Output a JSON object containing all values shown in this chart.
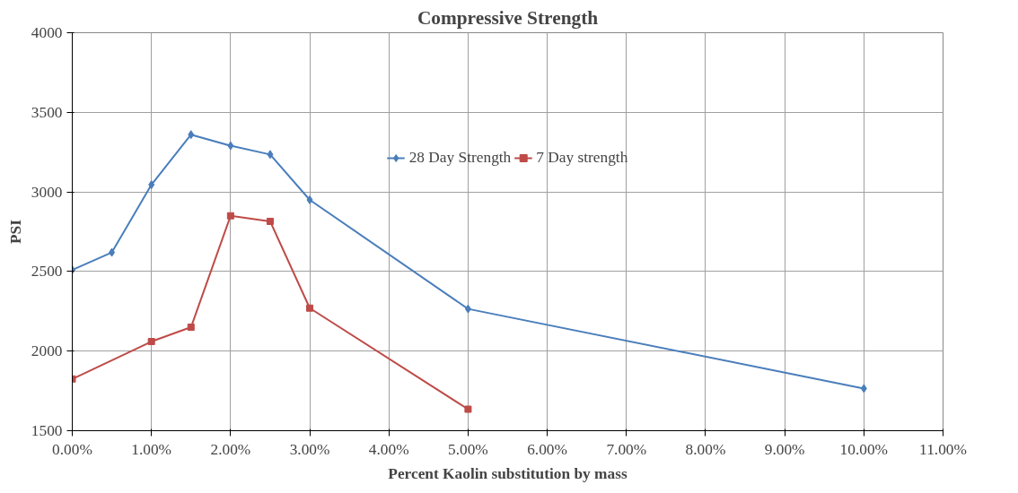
{
  "chart_data": {
    "type": "line",
    "title": "Compressive Strength",
    "xlabel": "Percent Kaolin substitution by mass",
    "ylabel": "PSI",
    "xlim": [
      0,
      11
    ],
    "xticks": [
      {
        "value": 0,
        "label": "0.00%"
      },
      {
        "value": 1,
        "label": "1.00%"
      },
      {
        "value": 2,
        "label": "2.00%"
      },
      {
        "value": 3,
        "label": "3.00%"
      },
      {
        "value": 4,
        "label": "4.00%"
      },
      {
        "value": 5,
        "label": "5.00%"
      },
      {
        "value": 6,
        "label": "6.00%"
      },
      {
        "value": 7,
        "label": "7.00%"
      },
      {
        "value": 8,
        "label": "8.00%"
      },
      {
        "value": 9,
        "label": "9.00%"
      },
      {
        "value": 10,
        "label": "10.00%"
      },
      {
        "value": 11,
        "label": "11.00%"
      }
    ],
    "ylim": [
      1500,
      4000
    ],
    "yticks": [
      1500,
      2000,
      2500,
      3000,
      3500,
      4000
    ],
    "grid": true,
    "legend": "top",
    "line_style": "solid",
    "series": [
      {
        "name": "28 Day Strength",
        "color": "#4a7ebb",
        "marker": "diamond",
        "x": [
          0,
          0.5,
          1,
          1.5,
          2,
          2.5,
          3,
          5,
          10
        ],
        "values": [
          2510,
          2620,
          3045,
          3360,
          3290,
          3235,
          2950,
          2265,
          1765
        ]
      },
      {
        "name": "7 Day strength",
        "color": "#be4b48",
        "marker": "square",
        "x": [
          0,
          1,
          1.5,
          2,
          2.5,
          3,
          5
        ],
        "values": [
          1825,
          2060,
          2150,
          2850,
          2815,
          2270,
          1635
        ]
      }
    ]
  }
}
